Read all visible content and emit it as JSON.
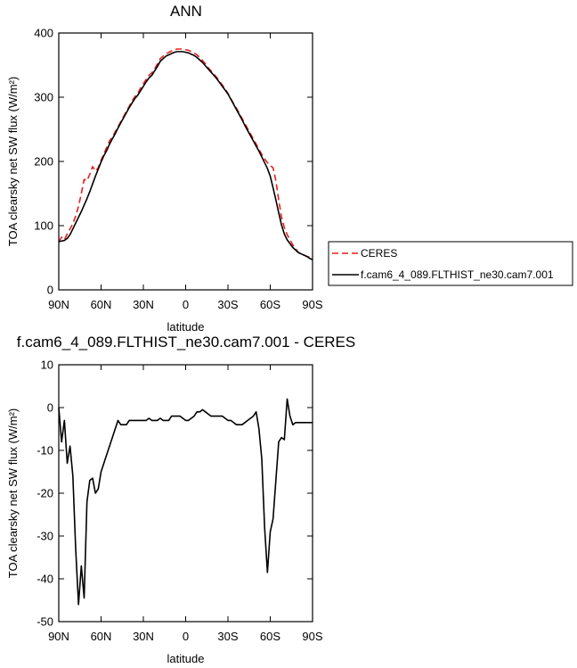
{
  "chart_data": [
    {
      "type": "line",
      "title": "ANN",
      "xlabel": "latitude",
      "ylabel": "TOA clearsky net SW flux (W/m²)",
      "xlim": [
        90,
        -90
      ],
      "ylim": [
        0,
        400
      ],
      "x_tick_values": [
        90,
        60,
        30,
        0,
        -30,
        -60,
        -90
      ],
      "x_tick_labels": [
        "90N",
        "60N",
        "30N",
        "0",
        "30S",
        "60S",
        "90S"
      ],
      "y_tick_values": [
        0,
        100,
        200,
        300,
        400
      ],
      "y_tick_labels": [
        "0",
        "100",
        "200",
        "300",
        "400"
      ],
      "legend": {
        "placement": "right",
        "entries": [
          "CERES",
          "f.cam6_4_089.FLTHIST_ne30.cam7.001"
        ]
      },
      "series": [
        {
          "name": "CERES",
          "color": "#e8201c",
          "dash": "dashed",
          "x": [
            90,
            88,
            86,
            84,
            82,
            80,
            78,
            76,
            74,
            72,
            70,
            68,
            66,
            64,
            62,
            60,
            58,
            56,
            54,
            52,
            50,
            48,
            46,
            44,
            42,
            40,
            38,
            36,
            34,
            32,
            30,
            28,
            26,
            24,
            22,
            20,
            18,
            16,
            14,
            12,
            10,
            8,
            6,
            4,
            2,
            0,
            -2,
            -4,
            -6,
            -8,
            -10,
            -12,
            -14,
            -16,
            -18,
            -20,
            -22,
            -24,
            -26,
            -28,
            -30,
            -32,
            -34,
            -36,
            -38,
            -40,
            -42,
            -44,
            -46,
            -48,
            -50,
            -52,
            -54,
            -56,
            -58,
            -60,
            -62,
            -64,
            -66,
            -68,
            -70,
            -72,
            -74,
            -76,
            -78,
            -80,
            -82,
            -84,
            -86,
            -88,
            -90
          ],
          "values": [
            75,
            82,
            78,
            87,
            95,
            103,
            115,
            130,
            150,
            172,
            170,
            180,
            192,
            185,
            190,
            202,
            212,
            222,
            232,
            238,
            246,
            254,
            262,
            270,
            278,
            286,
            294,
            301,
            306,
            314,
            321,
            328,
            334,
            338,
            344,
            352,
            360,
            364,
            367,
            370,
            372,
            374,
            375,
            375,
            375,
            374,
            373,
            371,
            369,
            366,
            362,
            357,
            352,
            346,
            341,
            336,
            331,
            325,
            319,
            313,
            306,
            298,
            290,
            283,
            275,
            267,
            259,
            251,
            243,
            235,
            227,
            219,
            211,
            204,
            198,
            194,
            190,
            170,
            140,
            113,
            97,
            86,
            78,
            70,
            64,
            58,
            56,
            54,
            52,
            51,
            50
          ]
        },
        {
          "name": "f.cam6_4_089.FLTHIST_ne30.cam7.001",
          "color": "#000000",
          "dash": "solid",
          "x": [
            90,
            88,
            86,
            84,
            82,
            80,
            78,
            76,
            74,
            72,
            70,
            68,
            66,
            64,
            62,
            60,
            58,
            56,
            54,
            52,
            50,
            48,
            46,
            44,
            42,
            40,
            38,
            36,
            34,
            32,
            30,
            28,
            26,
            24,
            22,
            20,
            18,
            16,
            14,
            12,
            10,
            8,
            6,
            4,
            2,
            0,
            -2,
            -4,
            -6,
            -8,
            -10,
            -12,
            -14,
            -16,
            -18,
            -20,
            -22,
            -24,
            -26,
            -28,
            -30,
            -32,
            -34,
            -36,
            -38,
            -40,
            -42,
            -44,
            -46,
            -48,
            -50,
            -52,
            -54,
            -56,
            -58,
            -60,
            -62,
            -64,
            -66,
            -68,
            -70,
            -72,
            -74,
            -76,
            -78,
            -80,
            -82,
            -84,
            -86,
            -88,
            -90
          ],
          "values": [
            75,
            76,
            77,
            80,
            86,
            95,
            104,
            113,
            122,
            132,
            142,
            153,
            165,
            177,
            188,
            199,
            209,
            217,
            227,
            235,
            243,
            252,
            260,
            268,
            276,
            284,
            291,
            298,
            303,
            310,
            317,
            324,
            330,
            334,
            341,
            348,
            356,
            360,
            364,
            366,
            368,
            370,
            371,
            371,
            371,
            370,
            369,
            367,
            365,
            362,
            358,
            354,
            349,
            344,
            339,
            334,
            329,
            323,
            317,
            311,
            305,
            297,
            289,
            281,
            273,
            265,
            256,
            248,
            240,
            232,
            224,
            216,
            207,
            198,
            189,
            177,
            159,
            140,
            120,
            101,
            87,
            78,
            72,
            66,
            62,
            58,
            56,
            54,
            52,
            49,
            47
          ]
        }
      ]
    },
    {
      "type": "line",
      "title": "f.cam6_4_089.FLTHIST_ne30.cam7.001 - CERES",
      "xlabel": "latitude",
      "ylabel": "TOA clearsky net SW flux (W/m²)",
      "xlim": [
        90,
        -90
      ],
      "ylim": [
        -50,
        10
      ],
      "x_tick_values": [
        90,
        60,
        30,
        0,
        -30,
        -60,
        -90
      ],
      "x_tick_labels": [
        "90N",
        "60N",
        "30N",
        "0",
        "30S",
        "60S",
        "90S"
      ],
      "y_tick_values": [
        -50,
        -40,
        -30,
        -20,
        -10,
        0,
        10
      ],
      "y_tick_labels": [
        "-50",
        "-40",
        "-30",
        "-20",
        "-10",
        "0",
        "10"
      ],
      "series": [
        {
          "name": "",
          "color": "#000000",
          "dash": "solid",
          "x": [
            90,
            88,
            86,
            84,
            82,
            80,
            78,
            76,
            74,
            72,
            70,
            68,
            66,
            64,
            62,
            60,
            58,
            56,
            54,
            52,
            50,
            48,
            46,
            44,
            42,
            40,
            38,
            36,
            34,
            32,
            30,
            28,
            26,
            24,
            22,
            20,
            18,
            16,
            14,
            12,
            10,
            8,
            6,
            4,
            2,
            0,
            -2,
            -4,
            -6,
            -8,
            -10,
            -12,
            -14,
            -16,
            -18,
            -20,
            -22,
            -24,
            -26,
            -28,
            -30,
            -32,
            -34,
            -36,
            -38,
            -40,
            -42,
            -44,
            -46,
            -48,
            -50,
            -52,
            -54,
            -56,
            -58,
            -60,
            -62,
            -64,
            -66,
            -68,
            -70,
            -72,
            -74,
            -76,
            -78,
            -80,
            -82,
            -84,
            -86,
            -88,
            -90
          ],
          "values": [
            0,
            -8,
            -3,
            -13,
            -9,
            -16,
            -33,
            -46,
            -37,
            -44.5,
            -22,
            -17,
            -16.5,
            -20,
            -19,
            -15,
            -13,
            -11,
            -9,
            -7,
            -5,
            -3,
            -4,
            -4,
            -4,
            -3,
            -3,
            -3,
            -3,
            -3,
            -3,
            -3,
            -2.5,
            -3,
            -3,
            -3,
            -2.5,
            -3,
            -3,
            -3,
            -2,
            -2,
            -2,
            -2,
            -2.5,
            -3,
            -3,
            -2.5,
            -2,
            -1,
            -1,
            -0.5,
            -1,
            -1.5,
            -2,
            -2,
            -2,
            -2,
            -2,
            -2.5,
            -3,
            -3,
            -3.5,
            -4,
            -4,
            -4,
            -3.5,
            -3,
            -2.5,
            -2,
            -1,
            -5,
            -12,
            -28,
            -38.5,
            -29,
            -26,
            -17,
            -8,
            -7,
            -7.5,
            2,
            -2,
            -4,
            -3.5,
            -3.5,
            -3.5,
            -3.5,
            -3.5,
            -3.5,
            -3.5
          ]
        }
      ]
    }
  ]
}
